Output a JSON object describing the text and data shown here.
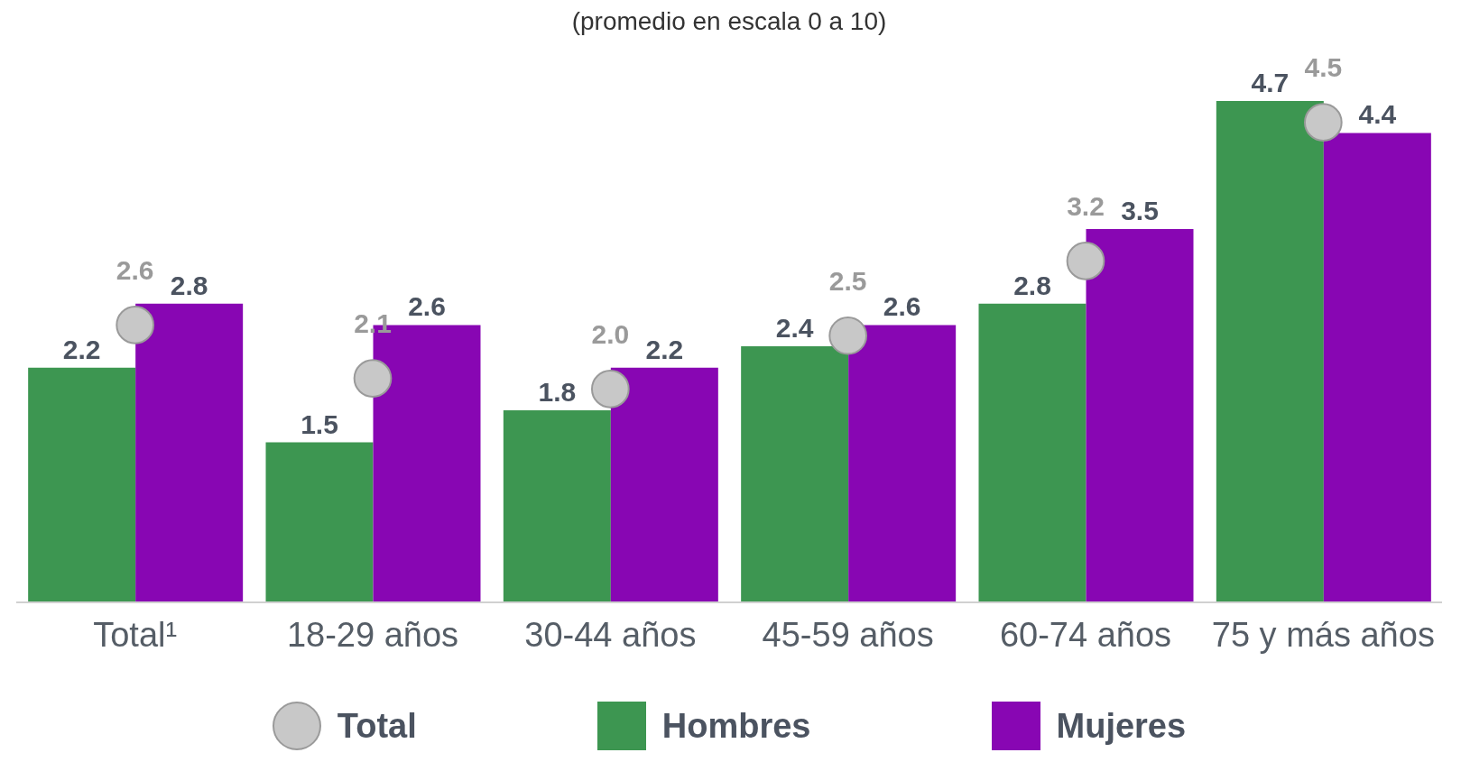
{
  "chart_data": {
    "type": "bar",
    "title": "(promedio en escala 0 a 10)",
    "categories": [
      "Total¹",
      "18-29 años",
      "30-44 años",
      "45-59 años",
      "60-74 años",
      "75 y más años"
    ],
    "series": [
      {
        "name": "Total",
        "type": "scatter",
        "color": "#c8c8c8",
        "marker": "circle",
        "x": [
          "Total¹",
          "18-29 años",
          "30-44 años",
          "45-59 años",
          "60-74 años",
          "75 y más años"
        ],
        "values": [
          2.6,
          2.1,
          2.0,
          2.5,
          3.2,
          4.5
        ],
        "value_labels": [
          "2.6",
          "2.1",
          "2.0",
          "2.5",
          "3.2",
          "4.5"
        ]
      },
      {
        "name": "Hombres",
        "color": "#3d9651",
        "values": [
          2.2,
          1.5,
          1.8,
          2.4,
          2.8,
          4.7
        ]
      },
      {
        "name": "Mujeres",
        "color": "#8806b3",
        "values": [
          2.8,
          2.6,
          2.2,
          2.6,
          3.5,
          4.4
        ]
      }
    ],
    "data_labels": true,
    "legend": "bottom"
  }
}
